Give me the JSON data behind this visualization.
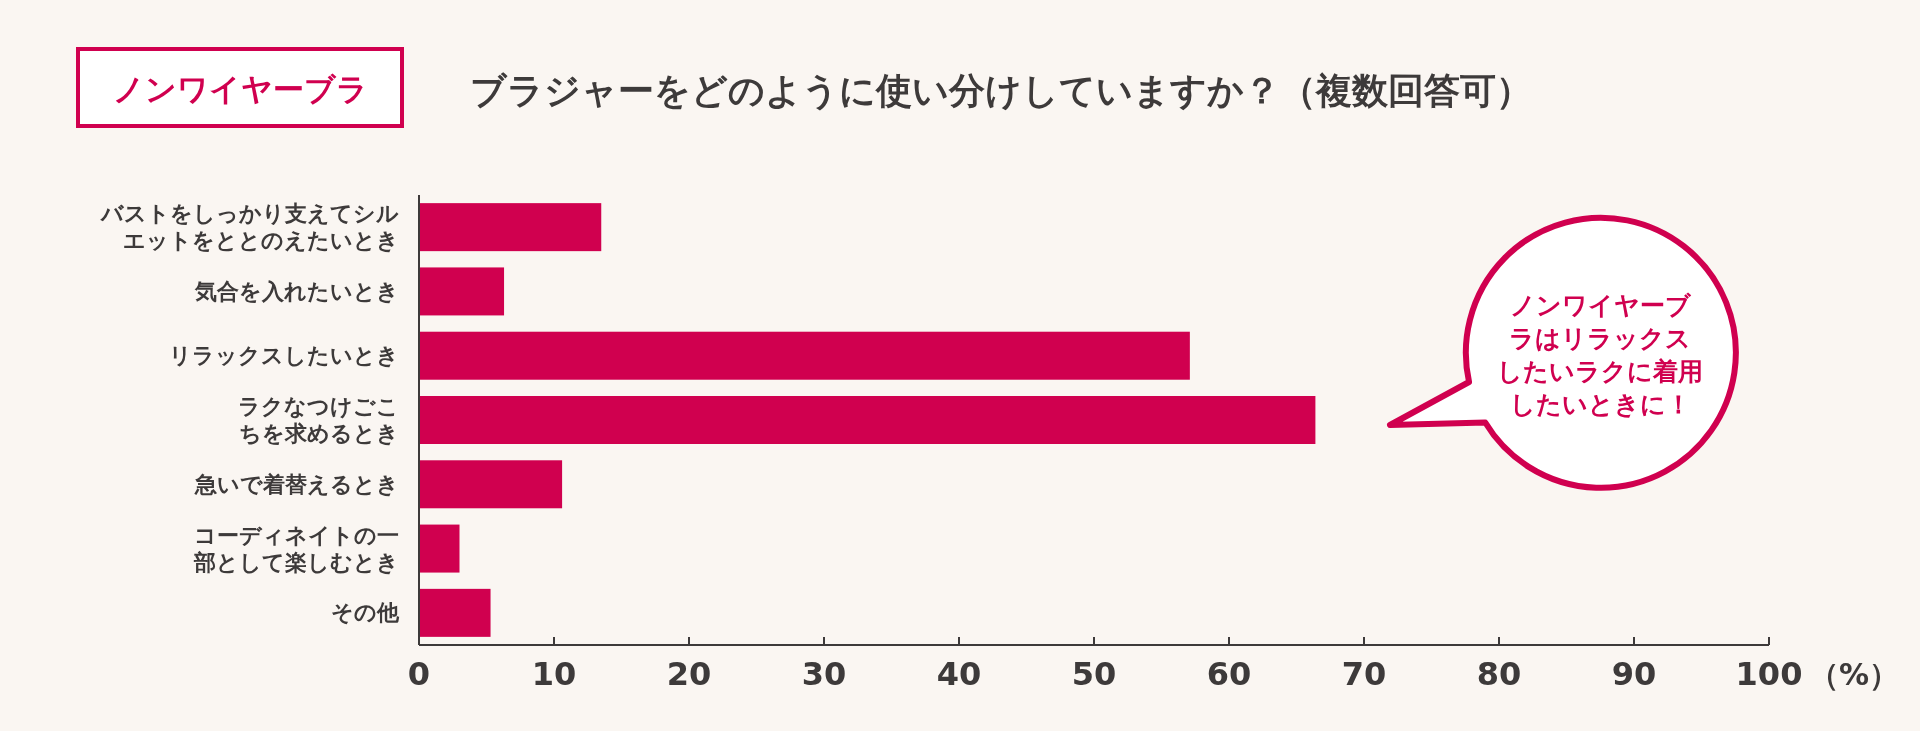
{
  "chart_data": {
    "type": "bar",
    "orientation": "horizontal",
    "title": "ブラジャーをどのように使い分けしていますか？（複数回答可）",
    "subtitle": "ノンワイヤーブラ",
    "xlabel": "（%）",
    "categories": [
      "バストをしっかり支えてシルエットをととのえたいとき",
      "気合を入れたいとき",
      "リラックスしたいとき",
      "ラクなつけごこちを求めるとき",
      "急いで着替えるとき",
      "コーディネイトの一部として楽しむとき",
      "その他"
    ],
    "values": [
      13.5,
      6.3,
      57.1,
      66.4,
      10.6,
      3.0,
      5.3
    ],
    "color": "#d0004f",
    "xlim": [
      0,
      100
    ],
    "xticks": [
      0,
      10,
      20,
      30,
      40,
      50,
      60,
      70,
      80,
      90,
      100
    ],
    "grid": false,
    "annotations": [
      "ノンワイヤーブラはリラックスしたいラクに着用したいときに！"
    ]
  }
}
